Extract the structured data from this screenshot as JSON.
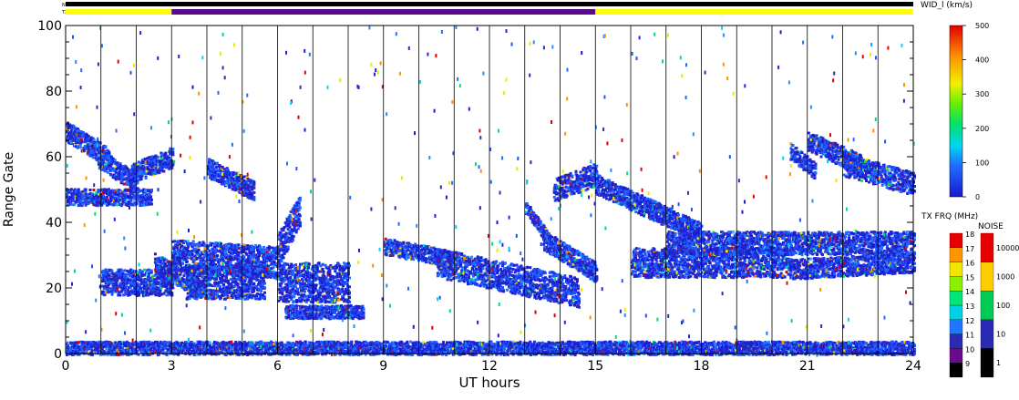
{
  "chart_data": {
    "type": "heatmap",
    "title": "",
    "xlabel": "UT hours",
    "ylabel": "Range Gate",
    "xlim": [
      0,
      24
    ],
    "ylim": [
      0,
      100
    ],
    "x_ticks": [
      0,
      3,
      6,
      9,
      12,
      15,
      18,
      21,
      24
    ],
    "y_ticks": [
      0,
      20,
      40,
      60,
      80,
      100
    ],
    "grid": "vertical lines every hour",
    "status_bars": {
      "noise_label": "Noise",
      "txfreq_label": "TX Freq",
      "txfreq_segments": [
        {
          "start": 0,
          "end": 3,
          "color": "#ffff00"
        },
        {
          "start": 3,
          "end": 15,
          "color": "#5a0a8c"
        },
        {
          "start": 15,
          "end": 24,
          "color": "#ffff00"
        }
      ]
    },
    "main_colorbar": {
      "label": "WID_l (km/s)",
      "range": [
        0,
        500
      ],
      "ticks": [
        0,
        100,
        200,
        300,
        400,
        500
      ]
    },
    "txfreq_colorbar": {
      "label": "TX FRQ (MHz)",
      "ticks": [
        9,
        10,
        11,
        12,
        13,
        14,
        15,
        16,
        17,
        18
      ],
      "colors": [
        "#000000",
        "#6a0a8c",
        "#2a2ab4",
        "#1e78ff",
        "#00d2e6",
        "#00e678",
        "#8cf000",
        "#f0e600",
        "#ff9600",
        "#e60000"
      ]
    },
    "noise_colorbar": {
      "label": "NOISE",
      "ticks": [
        1,
        10,
        100,
        1000,
        10000
      ],
      "colors": [
        "#000000",
        "#2a2ab4",
        "#00cc55",
        "#ffcc00",
        "#e60000"
      ]
    },
    "echo_regions": [
      {
        "x0": 0.0,
        "x1": 24.0,
        "y_start": 2,
        "y_end": 2,
        "width": 4
      },
      {
        "x0": 0.0,
        "x1": 1.2,
        "y_start": 68,
        "y_end": 60,
        "width": 6
      },
      {
        "x0": 0.9,
        "x1": 2.0,
        "y_start": 60,
        "y_end": 52,
        "width": 6
      },
      {
        "x0": 1.8,
        "x1": 3.0,
        "y_start": 55,
        "y_end": 60,
        "width": 6
      },
      {
        "x0": 0.0,
        "x1": 2.4,
        "y_start": 48,
        "y_end": 48,
        "width": 5
      },
      {
        "x0": 1.0,
        "x1": 3.0,
        "y_start": 22,
        "y_end": 22,
        "width": 8
      },
      {
        "x0": 2.5,
        "x1": 3.8,
        "y_start": 28,
        "y_end": 20,
        "width": 6
      },
      {
        "x0": 3.0,
        "x1": 6.0,
        "y_start": 30,
        "y_end": 28,
        "width": 10
      },
      {
        "x0": 3.4,
        "x1": 5.6,
        "y_start": 22,
        "y_end": 22,
        "width": 10
      },
      {
        "x0": 4.0,
        "x1": 5.3,
        "y_start": 57,
        "y_end": 50,
        "width": 6
      },
      {
        "x0": 6.0,
        "x1": 8.0,
        "y_start": 22,
        "y_end": 22,
        "width": 12
      },
      {
        "x0": 6.0,
        "x1": 6.6,
        "y_start": 32,
        "y_end": 44,
        "width": 10
      },
      {
        "x0": 6.2,
        "x1": 8.4,
        "y_start": 13,
        "y_end": 13,
        "width": 4
      },
      {
        "x0": 9.0,
        "x1": 11.0,
        "y_start": 33,
        "y_end": 29,
        "width": 5
      },
      {
        "x0": 10.5,
        "x1": 14.5,
        "y_start": 28,
        "y_end": 19,
        "width": 9
      },
      {
        "x0": 13.0,
        "x1": 14.0,
        "y_start": 45,
        "y_end": 30,
        "width": 4
      },
      {
        "x0": 13.8,
        "x1": 15.0,
        "y_start": 50,
        "y_end": 55,
        "width": 7
      },
      {
        "x0": 15.0,
        "x1": 18.0,
        "y_start": 52,
        "y_end": 37,
        "width": 6
      },
      {
        "x0": 13.5,
        "x1": 15.0,
        "y_start": 35,
        "y_end": 25,
        "width": 6
      },
      {
        "x0": 16.0,
        "x1": 20.5,
        "y_start": 28,
        "y_end": 28,
        "width": 9
      },
      {
        "x0": 17.0,
        "x1": 24.0,
        "y_start": 34,
        "y_end": 34,
        "width": 7
      },
      {
        "x0": 20.5,
        "x1": 24.0,
        "y_start": 26,
        "y_end": 28,
        "width": 6
      },
      {
        "x0": 21.0,
        "x1": 22.5,
        "y_start": 65,
        "y_end": 58,
        "width": 6
      },
      {
        "x0": 22.0,
        "x1": 24.0,
        "y_start": 58,
        "y_end": 52,
        "width": 7
      },
      {
        "x0": 20.5,
        "x1": 21.2,
        "y_start": 62,
        "y_end": 56,
        "width": 5
      }
    ]
  }
}
